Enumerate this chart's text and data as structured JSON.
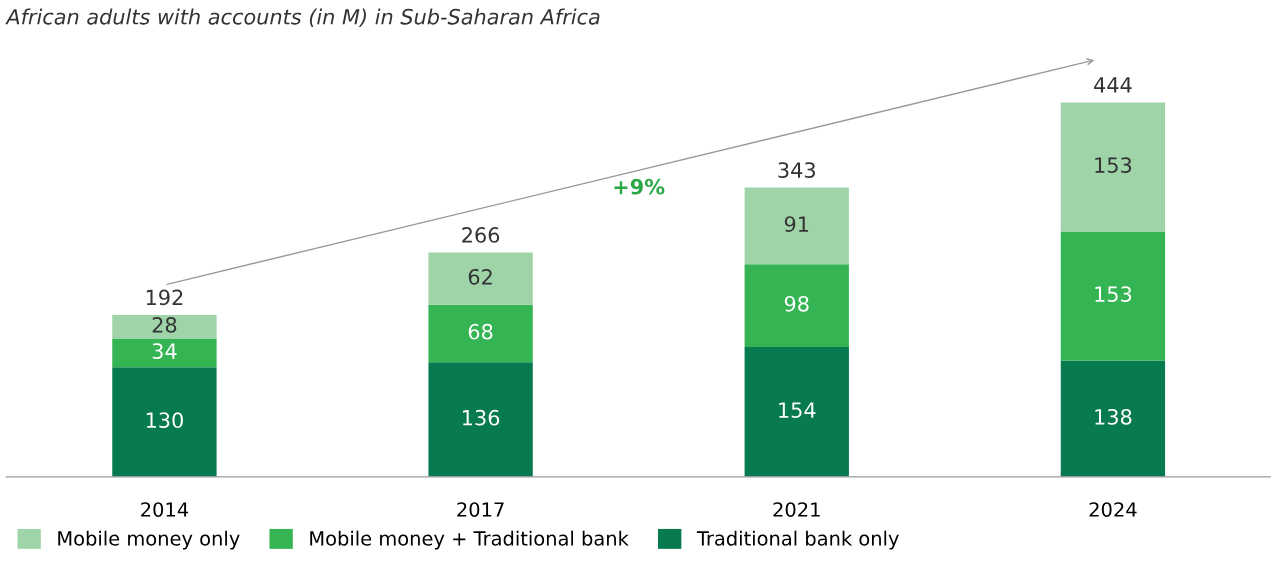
{
  "chart_data": {
    "type": "bar",
    "title": "African adults with accounts (in M) in Sub-Saharan Africa",
    "categories": [
      "2014",
      "2017",
      "2021",
      "2024"
    ],
    "stacked": true,
    "series": [
      {
        "name": "Traditional bank only",
        "color": "#077a50",
        "values": [
          130,
          136,
          154,
          138
        ]
      },
      {
        "name": "Mobile money + Traditional bank",
        "color": "#35b454",
        "values": [
          34,
          68,
          98,
          153
        ]
      },
      {
        "name": "Mobile money only",
        "color": "#9fd4a8",
        "values": [
          28,
          62,
          91,
          153
        ]
      }
    ],
    "data_labels": true,
    "totals": [
      "192",
      "266",
      "343",
      "444"
    ],
    "annotations": [
      "+9%"
    ],
    "legend": "bottom left",
    "grid": false,
    "tick_labels": "x"
  }
}
